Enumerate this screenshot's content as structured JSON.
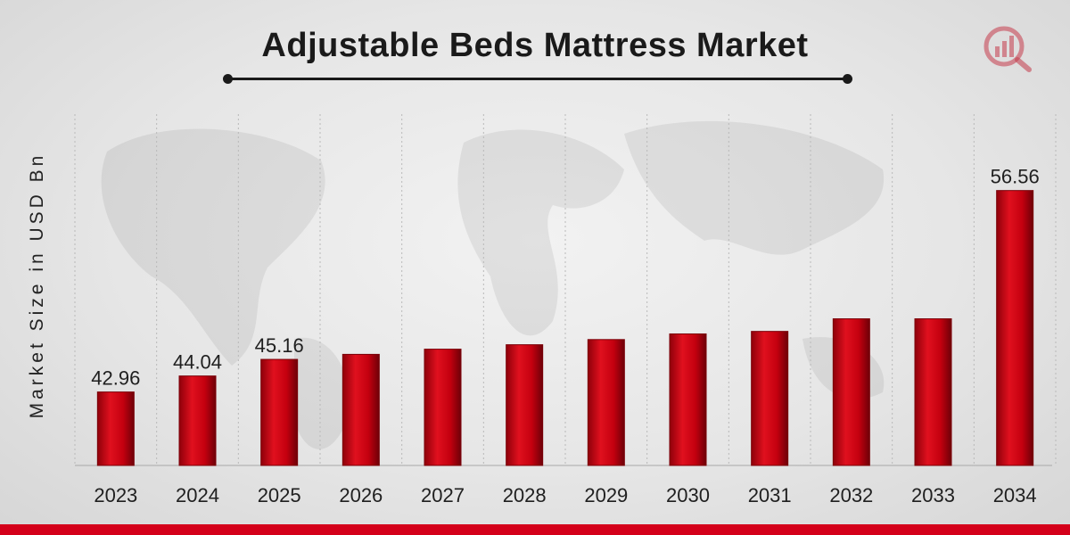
{
  "chart_data": {
    "type": "bar",
    "title": "Adjustable Beds Mattress Market",
    "xlabel": "",
    "ylabel": "Market Size in USD Bn",
    "categories": [
      "2023",
      "2024",
      "2025",
      "2026",
      "2027",
      "2028",
      "2029",
      "2030",
      "2031",
      "2032",
      "2033",
      "2034"
    ],
    "values": [
      42.96,
      44.04,
      45.16,
      45.5,
      45.85,
      46.15,
      46.5,
      46.88,
      47.05,
      47.9,
      47.9,
      56.56
    ],
    "data_labels": {
      "0": "42.96",
      "1": "44.04",
      "2": "45.16",
      "11": "56.56"
    },
    "ylim": [
      38,
      56.6
    ],
    "grid": "vertical dashed",
    "bar_color": "#c4000f"
  },
  "colors": {
    "accent": "#d4001a",
    "bar": "#c4000f",
    "bar_dark": "#7a0008",
    "text": "#1a1a1a"
  },
  "logo": {
    "icon": "market-research-logo-icon"
  }
}
